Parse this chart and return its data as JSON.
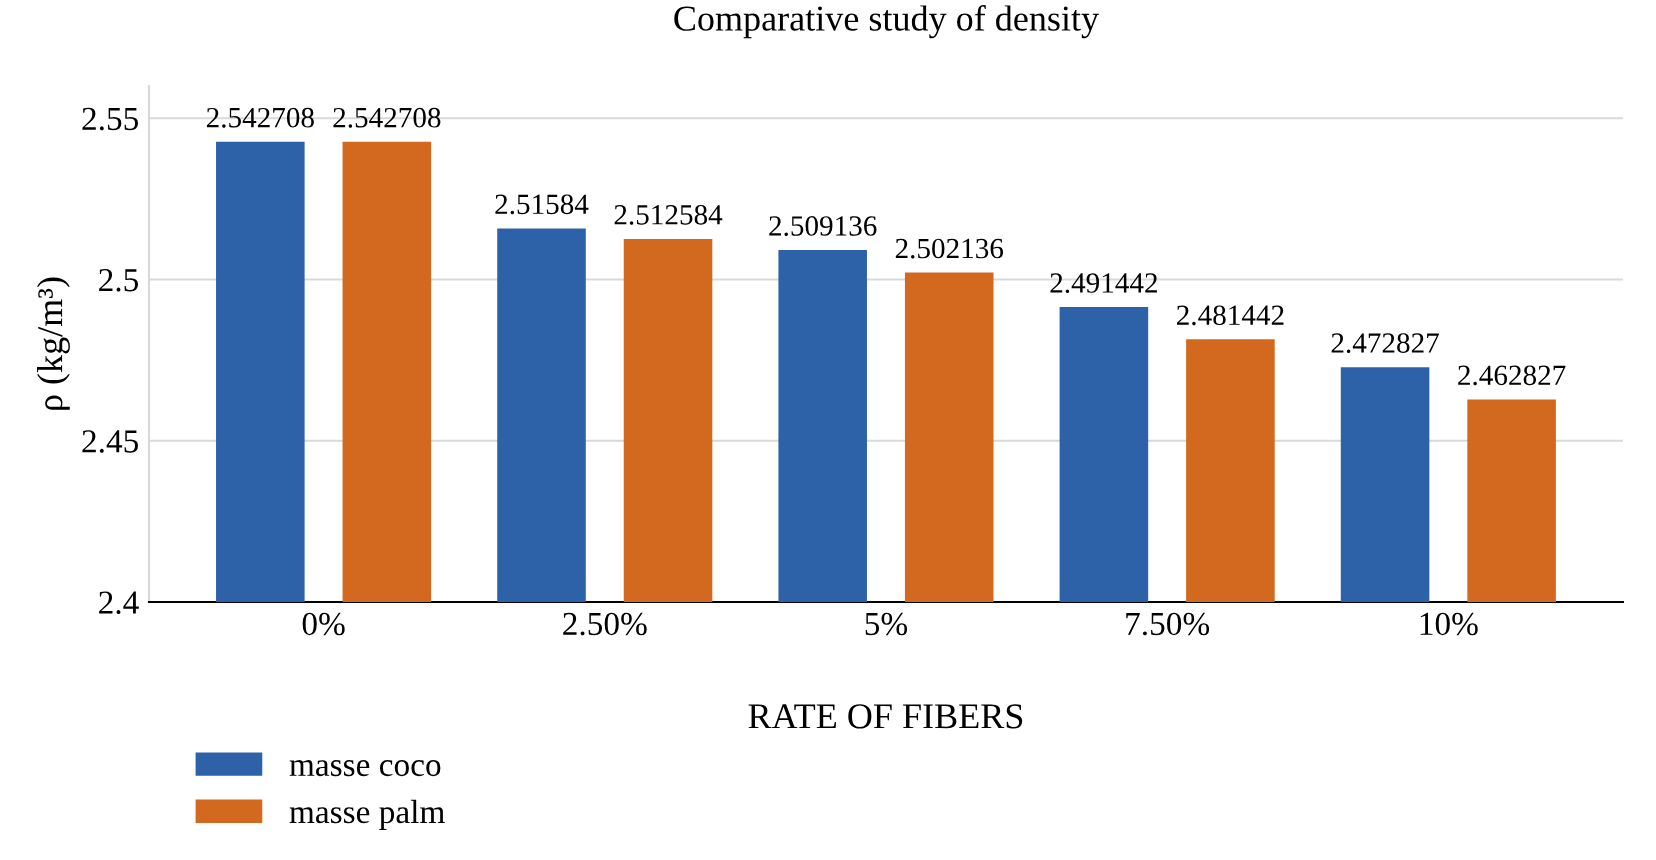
{
  "chart_data": {
    "type": "bar",
    "title": "Comparative study of density",
    "xlabel": "RATE OF FIBERS",
    "ylabel": "ρ (kg/m³)",
    "categories": [
      "0%",
      "2.50%",
      "5%",
      "7.50%",
      "10%"
    ],
    "series": [
      {
        "name": "masse coco",
        "color": "#2e62a8",
        "values": [
          2.542708,
          2.51584,
          2.509136,
          2.491442,
          2.472827
        ]
      },
      {
        "name": "masse palm",
        "color": "#d2691e",
        "values": [
          2.542708,
          2.512584,
          2.502136,
          2.481442,
          2.462827
        ]
      }
    ],
    "ylim": [
      2.4,
      2.56
    ],
    "yticks": [
      2.4,
      2.45,
      2.5,
      2.55
    ],
    "grid": "y",
    "legend": "bottom left",
    "data_labels": true
  }
}
